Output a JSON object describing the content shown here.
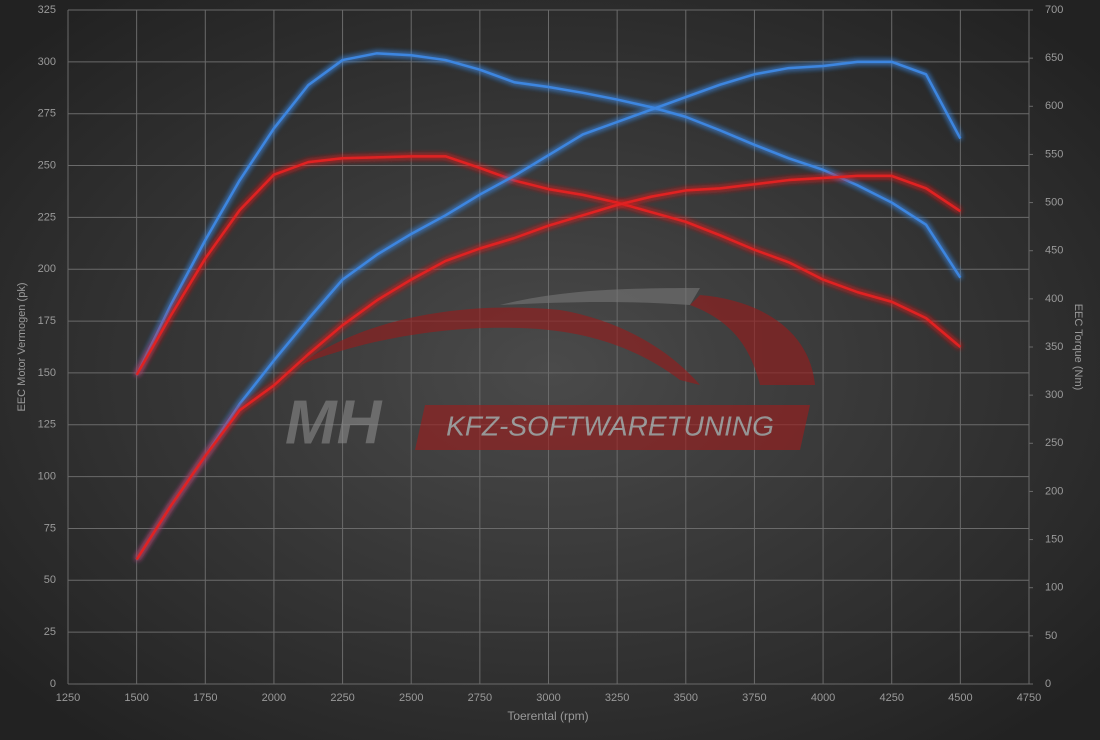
{
  "chart_data": {
    "type": "line",
    "x_label": "Toerental (rpm)",
    "y_label": "EEC Motor Vermogen (pk)",
    "y2_label": "EEC Torque (Nm)",
    "watermark": {
      "brand": "MH",
      "text": "KFZ-SOFTWARETUNING"
    },
    "x": [
      1500,
      1625,
      1750,
      1875,
      2000,
      2125,
      2250,
      2375,
      2500,
      2625,
      2750,
      2875,
      3000,
      3125,
      3250,
      3375,
      3500,
      3625,
      3750,
      3875,
      4000,
      4125,
      4250,
      4375,
      4500
    ],
    "series": [
      {
        "color": "#3d86e0",
        "axis": "y2",
        "values": [
          321,
          394,
          461,
          523,
          577,
          622,
          648,
          655,
          653,
          648,
          638,
          625,
          620,
          614,
          607,
          599,
          589,
          575,
          560,
          546,
          534,
          518,
          500,
          477,
          422
        ]
      },
      {
        "color": "#e02424",
        "axis": "y2",
        "values": [
          321,
          383,
          442,
          492,
          529,
          542,
          546,
          547,
          548,
          548,
          536,
          523,
          514,
          508,
          500,
          490,
          480,
          466,
          451,
          438,
          420,
          407,
          397,
          380,
          350
        ]
      },
      {
        "color": "#3d86e0",
        "values": [
          60,
          86,
          110,
          135,
          156,
          176,
          195,
          207,
          217,
          226,
          236,
          245,
          255,
          265,
          271,
          277,
          283,
          289,
          294,
          297,
          298,
          300,
          300,
          294,
          263
        ]
      },
      {
        "color": "#e02424",
        "values": [
          60,
          86,
          110,
          132,
          144,
          159,
          173,
          185,
          195,
          204,
          210,
          215,
          221,
          226,
          231,
          235,
          238,
          239,
          241,
          243,
          244,
          245,
          245,
          239,
          228
        ]
      }
    ],
    "xlim": [
      1250,
      4750
    ],
    "xticks": [
      1250,
      1500,
      1750,
      2000,
      2250,
      2500,
      2750,
      3000,
      3250,
      3500,
      3750,
      4000,
      4250,
      4500,
      4750
    ],
    "ylim": [
      0,
      325
    ],
    "yticks": [
      0,
      25,
      50,
      75,
      100,
      125,
      150,
      175,
      200,
      225,
      250,
      275,
      300,
      325
    ],
    "y2lim": [
      0,
      700
    ],
    "y2ticks": [
      0,
      50,
      100,
      150,
      200,
      250,
      300,
      350,
      400,
      450,
      500,
      550,
      600,
      650,
      700
    ],
    "grid": true
  }
}
